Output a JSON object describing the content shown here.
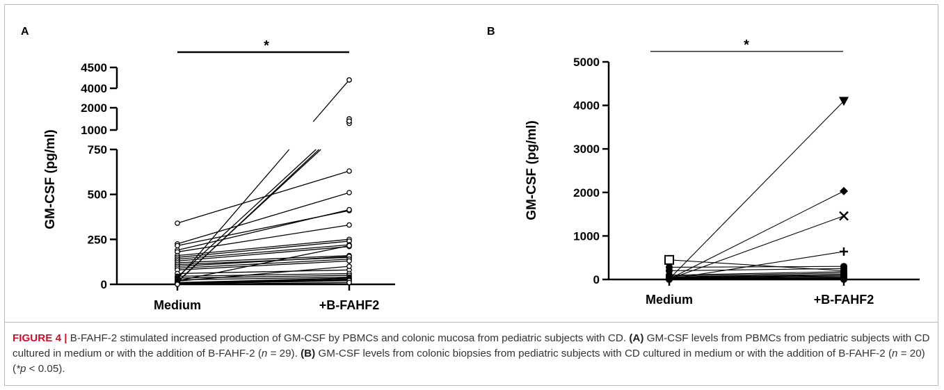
{
  "figure": {
    "panel_a_letter": "A",
    "panel_b_letter": "B",
    "significance_marker": "*"
  },
  "caption": {
    "label": "FIGURE 4 |",
    "line1": "B-FAHF-2 stimulated increased production of GM-CSF by PBMCs and colonic mucosa from pediatric subjects with CD.",
    "refA": "(A)",
    "line2": "GM-CSF levels from PBMCs from pediatric subjects with CD cultured in medium or with the addition of B-FAHF-2 (",
    "nA_n": "n",
    "nA": " = 29). ",
    "refB": "(B)",
    "line3": "GM-CSF levels from colonic biopsies from pediatric subjects with CD cultured in medium or with the addition of B-FAHF-2 (",
    "nB_n": "n",
    "nB": " = 20) (",
    "p_star": "*p",
    "p_rest": " < 0.05)."
  },
  "chart_data": [
    {
      "type": "scatter",
      "panel": "A",
      "ylabel": "GM-CSF (pg/ml)",
      "categories": [
        "Medium",
        "+B-FAHF2"
      ],
      "y_axis_segments": [
        {
          "range": [
            0,
            750
          ],
          "ticks": [
            0,
            250,
            500,
            750
          ]
        },
        {
          "range": [
            1000,
            2000
          ],
          "ticks": [
            1000,
            2000
          ]
        },
        {
          "range": [
            4000,
            4500
          ],
          "ticks": [
            4000,
            4500
          ]
        }
      ],
      "marker": "open-circle",
      "pairs": [
        [
          340,
          630
        ],
        [
          225,
          510
        ],
        [
          215,
          410
        ],
        [
          190,
          415
        ],
        [
          180,
          330
        ],
        [
          160,
          250
        ],
        [
          150,
          240
        ],
        [
          140,
          220
        ],
        [
          130,
          210
        ],
        [
          120,
          160
        ],
        [
          110,
          150
        ],
        [
          100,
          155
        ],
        [
          90,
          140
        ],
        [
          80,
          130
        ],
        [
          60,
          80
        ],
        [
          45,
          60
        ],
        [
          40,
          1500
        ],
        [
          35,
          50
        ],
        [
          30,
          4200
        ],
        [
          25,
          40
        ],
        [
          20,
          215
        ],
        [
          18,
          100
        ],
        [
          15,
          1300
        ],
        [
          12,
          1400
        ],
        [
          10,
          35
        ],
        [
          8,
          30
        ],
        [
          5,
          25
        ],
        [
          3,
          20
        ],
        [
          0,
          10
        ]
      ],
      "significance": "*"
    },
    {
      "type": "scatter",
      "panel": "B",
      "ylabel": "GM-CSF (pg/ml)",
      "categories": [
        "Medium",
        "+B-FAHF2"
      ],
      "ylim": [
        0,
        5000
      ],
      "y_ticks": [
        0,
        1000,
        2000,
        3000,
        4000,
        5000
      ],
      "pairs": [
        {
          "medium": 450,
          "fahf2": 200,
          "marker": "square"
        },
        {
          "medium": 280,
          "fahf2": 300,
          "marker": "circle"
        },
        {
          "medium": 200,
          "fahf2": 250,
          "marker": "circle"
        },
        {
          "medium": 10,
          "fahf2": 4100,
          "marker": "triangle-down"
        },
        {
          "medium": 10,
          "fahf2": 2030,
          "marker": "diamond"
        },
        {
          "medium": 10,
          "fahf2": 1460,
          "marker": "x"
        },
        {
          "medium": 10,
          "fahf2": 640,
          "marker": "plus"
        },
        {
          "medium": 100,
          "fahf2": 180,
          "marker": "circle"
        },
        {
          "medium": 80,
          "fahf2": 150,
          "marker": "circle"
        },
        {
          "medium": 60,
          "fahf2": 120,
          "marker": "circle"
        },
        {
          "medium": 50,
          "fahf2": 100,
          "marker": "circle"
        },
        {
          "medium": 40,
          "fahf2": 80,
          "marker": "circle"
        },
        {
          "medium": 30,
          "fahf2": 60,
          "marker": "circle"
        },
        {
          "medium": 20,
          "fahf2": 40,
          "marker": "circle"
        },
        {
          "medium": 20,
          "fahf2": 30,
          "marker": "circle"
        },
        {
          "medium": 15,
          "fahf2": 20,
          "marker": "circle"
        },
        {
          "medium": 10,
          "fahf2": 15,
          "marker": "circle"
        },
        {
          "medium": 5,
          "fahf2": 10,
          "marker": "circle"
        },
        {
          "medium": 5,
          "fahf2": 5,
          "marker": "circle"
        },
        {
          "medium": 0,
          "fahf2": 0,
          "marker": "circle"
        }
      ],
      "significance": "*"
    }
  ]
}
